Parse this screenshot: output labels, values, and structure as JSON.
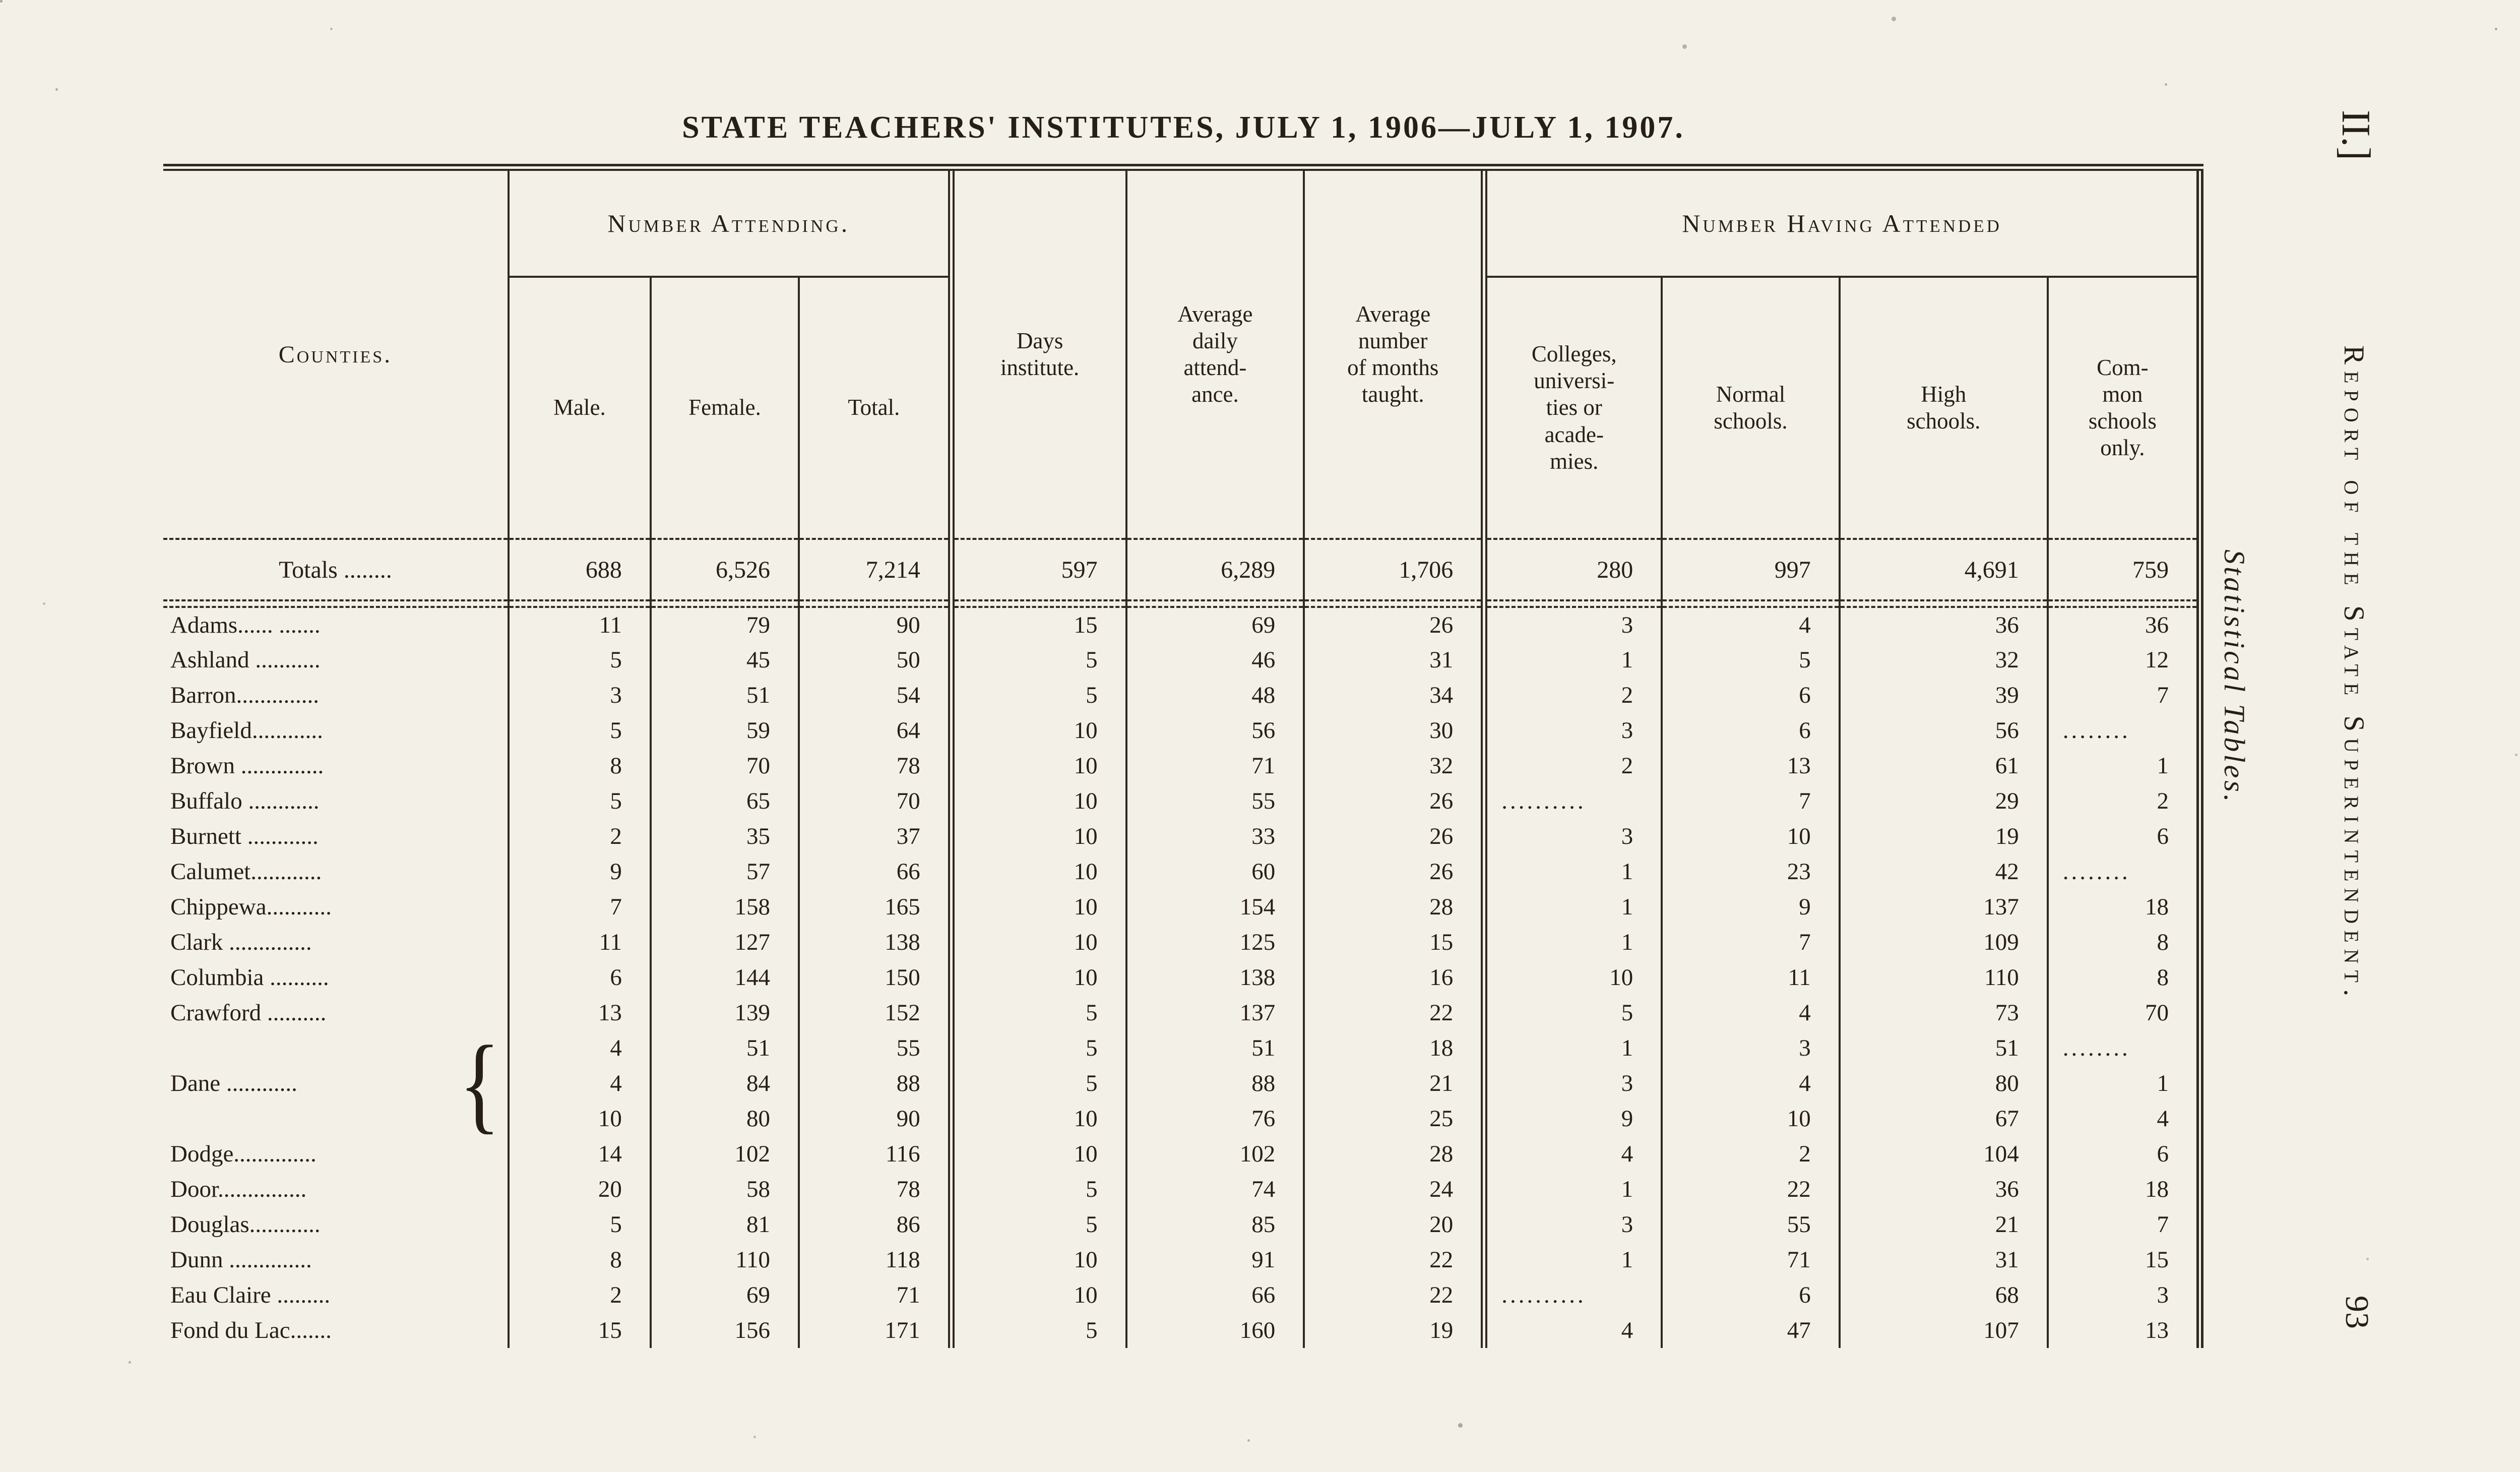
{
  "page": {
    "title": "STATE TEACHERS' INSTITUTES, JULY 1, 1906—JULY 1, 1907.",
    "margin": {
      "chapter": "II.]",
      "running_title": "Report of the State Superintendent.",
      "side_label": "Statistical Tables.",
      "page_number": "93"
    }
  },
  "table": {
    "headers": {
      "counties": "Counties.",
      "number_attending": "Number Attending.",
      "male": "Male.",
      "female": "Female.",
      "total": "Total.",
      "days_institute": "Days\ninstitute.",
      "avg_daily_attendance": "Average\ndaily\nattend-\nance.",
      "avg_months_taught": "Average\nnumber\nof months\ntaught.",
      "number_having_attended": "Number Having Attended",
      "colleges": "Colleges,\nuniversi-\nties or\nacade-\nmies.",
      "normal_schools": "Normal\nschools.",
      "high_schools": "High\nschools.",
      "common_schools": "Com-\nmon\nschools\nonly."
    },
    "totals": {
      "label": "Totals ........",
      "values": [
        "688",
        "6,526",
        "7,214",
        "597",
        "6,289",
        "1,706",
        "280",
        "997",
        "4,691",
        "759"
      ]
    },
    "rows": [
      {
        "label": "Adams...... .......",
        "values": [
          "11",
          "79",
          "90",
          "15",
          "69",
          "26",
          "3",
          "4",
          "36",
          "36"
        ]
      },
      {
        "label": "Ashland ...........",
        "values": [
          "5",
          "45",
          "50",
          "5",
          "46",
          "31",
          "1",
          "5",
          "32",
          "12"
        ]
      },
      {
        "label": "Barron..............",
        "values": [
          "3",
          "51",
          "54",
          "5",
          "48",
          "34",
          "2",
          "6",
          "39",
          "7"
        ]
      },
      {
        "label": "Bayfield............",
        "values": [
          "5",
          "59",
          "64",
          "10",
          "56",
          "30",
          "3",
          "6",
          "56",
          "........"
        ]
      },
      {
        "label": "Brown ..............",
        "values": [
          "8",
          "70",
          "78",
          "10",
          "71",
          "32",
          "2",
          "13",
          "61",
          "1"
        ]
      },
      {
        "label": "Buffalo ............",
        "values": [
          "5",
          "65",
          "70",
          "10",
          "55",
          "26",
          "..........",
          "7",
          "29",
          "2"
        ]
      },
      {
        "label": "Burnett ............",
        "values": [
          "2",
          "35",
          "37",
          "10",
          "33",
          "26",
          "3",
          "10",
          "19",
          "6"
        ]
      },
      {
        "label": "Calumet............",
        "values": [
          "9",
          "57",
          "66",
          "10",
          "60",
          "26",
          "1",
          "23",
          "42",
          "........"
        ]
      },
      {
        "label": "Chippewa...........",
        "values": [
          "7",
          "158",
          "165",
          "10",
          "154",
          "28",
          "1",
          "9",
          "137",
          "18"
        ]
      },
      {
        "label": "Clark ..............",
        "values": [
          "11",
          "127",
          "138",
          "10",
          "125",
          "15",
          "1",
          "7",
          "109",
          "8"
        ]
      },
      {
        "label": "Columbia ..........",
        "values": [
          "6",
          "144",
          "150",
          "10",
          "138",
          "16",
          "10",
          "11",
          "110",
          "8"
        ]
      },
      {
        "label": "Crawford ..........",
        "values": [
          "13",
          "139",
          "152",
          "5",
          "137",
          "22",
          "5",
          "4",
          "73",
          "70"
        ]
      },
      {
        "label": "Dane ............",
        "span": 3,
        "brace": "{",
        "values": [
          "4",
          "51",
          "55",
          "5",
          "51",
          "18",
          "1",
          "3",
          "51",
          "........"
        ]
      },
      {
        "label": "",
        "values": [
          "4",
          "84",
          "88",
          "5",
          "88",
          "21",
          "3",
          "4",
          "80",
          "1"
        ]
      },
      {
        "label": "",
        "values": [
          "10",
          "80",
          "90",
          "10",
          "76",
          "25",
          "9",
          "10",
          "67",
          "4"
        ]
      },
      {
        "label": "Dodge..............",
        "values": [
          "14",
          "102",
          "116",
          "10",
          "102",
          "28",
          "4",
          "2",
          "104",
          "6"
        ]
      },
      {
        "label": "Door...............",
        "values": [
          "20",
          "58",
          "78",
          "5",
          "74",
          "24",
          "1",
          "22",
          "36",
          "18"
        ]
      },
      {
        "label": "Douglas............",
        "values": [
          "5",
          "81",
          "86",
          "5",
          "85",
          "20",
          "3",
          "55",
          "21",
          "7"
        ]
      },
      {
        "label": "Dunn ..............",
        "values": [
          "8",
          "110",
          "118",
          "10",
          "91",
          "22",
          "1",
          "71",
          "31",
          "15"
        ]
      },
      {
        "label": "Eau Claire .........",
        "values": [
          "2",
          "69",
          "71",
          "10",
          "66",
          "22",
          "..........",
          "6",
          "68",
          "3"
        ]
      },
      {
        "label": "Fond du Lac.......",
        "values": [
          "15",
          "156",
          "171",
          "5",
          "160",
          "19",
          "4",
          "47",
          "107",
          "13"
        ]
      }
    ]
  }
}
